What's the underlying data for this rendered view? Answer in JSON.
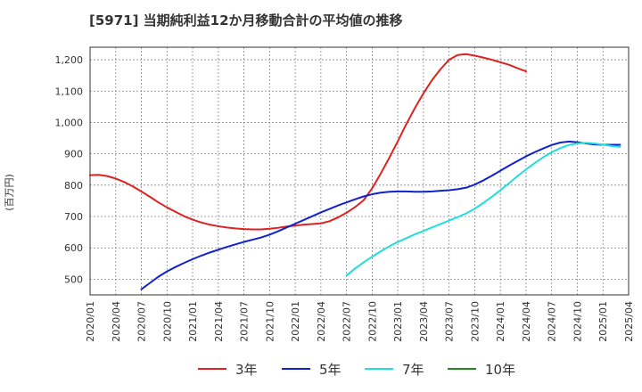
{
  "chart_data": {
    "type": "line",
    "title": "[5971]  当期純利益12か月移動合計の平均値の推移",
    "ylabel": "(百万円)",
    "ylim": [
      450,
      1240
    ],
    "yticks": [
      500,
      600,
      700,
      800,
      900,
      1000,
      1100,
      1200
    ],
    "ytick_labels": [
      "500",
      "600",
      "700",
      "800",
      "900",
      "1,000",
      "1,100",
      "1,200"
    ],
    "xtick_labels": [
      "2020/01",
      "2020/04",
      "2020/07",
      "2020/10",
      "2021/01",
      "2021/04",
      "2021/07",
      "2021/10",
      "2022/01",
      "2022/04",
      "2022/07",
      "2022/10",
      "2023/01",
      "2023/04",
      "2023/07",
      "2023/10",
      "2024/01",
      "2024/04",
      "2024/07",
      "2024/10",
      "2025/01",
      "2025/04"
    ],
    "grid": true,
    "series": [
      {
        "name": "3年",
        "color": "#dd2222",
        "points": [
          [
            0,
            832
          ],
          [
            1,
            833
          ],
          [
            2,
            829
          ],
          [
            3,
            821
          ],
          [
            4,
            810
          ],
          [
            5,
            796
          ],
          [
            6,
            780
          ],
          [
            7,
            763
          ],
          [
            8,
            745
          ],
          [
            9,
            729
          ],
          [
            10,
            715
          ],
          [
            11,
            701
          ],
          [
            12,
            690
          ],
          [
            13,
            681
          ],
          [
            14,
            674
          ],
          [
            15,
            669
          ],
          [
            16,
            665
          ],
          [
            17,
            662
          ],
          [
            18,
            660
          ],
          [
            19,
            659
          ],
          [
            20,
            659
          ],
          [
            21,
            661
          ],
          [
            22,
            664
          ],
          [
            23,
            668
          ],
          [
            24,
            671
          ],
          [
            25,
            674
          ],
          [
            26,
            676
          ],
          [
            27,
            678
          ],
          [
            28,
            685
          ],
          [
            29,
            697
          ],
          [
            30,
            712
          ],
          [
            31,
            730
          ],
          [
            32,
            752
          ],
          [
            33,
            790
          ],
          [
            34,
            837
          ],
          [
            35,
            887
          ],
          [
            36,
            940
          ],
          [
            37,
            995
          ],
          [
            38,
            1046
          ],
          [
            39,
            1093
          ],
          [
            40,
            1135
          ],
          [
            41,
            1170
          ],
          [
            42,
            1200
          ],
          [
            43,
            1215
          ],
          [
            44,
            1218
          ],
          [
            45,
            1213
          ],
          [
            46,
            1207
          ],
          [
            47,
            1200
          ],
          [
            48,
            1192
          ],
          [
            49,
            1184
          ],
          [
            50,
            1173
          ],
          [
            51,
            1163
          ]
        ]
      },
      {
        "name": "5年",
        "color": "#1122cc",
        "points": [
          [
            6,
            468
          ],
          [
            7,
            488
          ],
          [
            8,
            508
          ],
          [
            9,
            525
          ],
          [
            10,
            539
          ],
          [
            11,
            552
          ],
          [
            12,
            564
          ],
          [
            13,
            575
          ],
          [
            14,
            585
          ],
          [
            15,
            594
          ],
          [
            16,
            603
          ],
          [
            17,
            611
          ],
          [
            18,
            619
          ],
          [
            19,
            626
          ],
          [
            20,
            633
          ],
          [
            21,
            642
          ],
          [
            22,
            653
          ],
          [
            23,
            665
          ],
          [
            24,
            677
          ],
          [
            25,
            689
          ],
          [
            26,
            701
          ],
          [
            27,
            713
          ],
          [
            28,
            724
          ],
          [
            29,
            735
          ],
          [
            30,
            745
          ],
          [
            31,
            755
          ],
          [
            32,
            764
          ],
          [
            33,
            771
          ],
          [
            34,
            776
          ],
          [
            35,
            779
          ],
          [
            36,
            780
          ],
          [
            37,
            780
          ],
          [
            38,
            779
          ],
          [
            39,
            779
          ],
          [
            40,
            780
          ],
          [
            41,
            782
          ],
          [
            42,
            784
          ],
          [
            43,
            787
          ],
          [
            44,
            792
          ],
          [
            45,
            802
          ],
          [
            46,
            815
          ],
          [
            47,
            830
          ],
          [
            48,
            846
          ],
          [
            49,
            862
          ],
          [
            50,
            877
          ],
          [
            51,
            892
          ],
          [
            52,
            905
          ],
          [
            53,
            917
          ],
          [
            54,
            928
          ],
          [
            55,
            936
          ],
          [
            56,
            939
          ],
          [
            57,
            937
          ],
          [
            58,
            933
          ],
          [
            59,
            930
          ],
          [
            60,
            929
          ],
          [
            61,
            929
          ],
          [
            62,
            929
          ]
        ]
      },
      {
        "name": "7年",
        "color": "#22dddd",
        "points": [
          [
            30,
            512
          ],
          [
            31,
            534
          ],
          [
            32,
            554
          ],
          [
            33,
            572
          ],
          [
            34,
            589
          ],
          [
            35,
            605
          ],
          [
            36,
            619
          ],
          [
            37,
            631
          ],
          [
            38,
            643
          ],
          [
            39,
            654
          ],
          [
            40,
            665
          ],
          [
            41,
            676
          ],
          [
            42,
            687
          ],
          [
            43,
            698
          ],
          [
            44,
            710
          ],
          [
            45,
            725
          ],
          [
            46,
            743
          ],
          [
            47,
            763
          ],
          [
            48,
            784
          ],
          [
            49,
            806
          ],
          [
            50,
            829
          ],
          [
            51,
            850
          ],
          [
            52,
            870
          ],
          [
            53,
            889
          ],
          [
            54,
            905
          ],
          [
            55,
            918
          ],
          [
            56,
            928
          ],
          [
            57,
            933
          ],
          [
            58,
            935
          ],
          [
            59,
            933
          ],
          [
            60,
            929
          ],
          [
            61,
            925
          ],
          [
            62,
            922
          ]
        ]
      },
      {
        "name": "10年",
        "color": "#228822",
        "points": []
      }
    ]
  }
}
